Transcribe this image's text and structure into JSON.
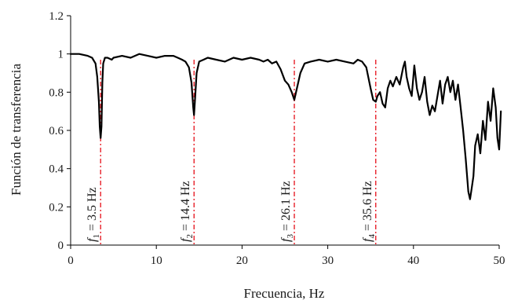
{
  "chart_data": {
    "type": "line",
    "title": "",
    "xlabel": "Frecuencia, Hz",
    "ylabel": "Función de transferencia",
    "xlim": [
      0,
      50
    ],
    "ylim": [
      0,
      1.2
    ],
    "x_ticks": [
      0,
      10,
      20,
      30,
      40,
      50
    ],
    "y_ticks": [
      0,
      0.2,
      0.4,
      0.6,
      0.8,
      1,
      1.2
    ],
    "x_tick_labels": [
      "0",
      "10",
      "20",
      "30",
      "40",
      "50"
    ],
    "y_tick_labels": [
      "0",
      "0.2",
      "0.4",
      "0.6",
      "0.8",
      "1",
      "1.2"
    ],
    "grid": false,
    "legend": "none",
    "line_color": "#000000",
    "marker_line_color": "#e8202a",
    "series": [
      {
        "x": [
          0,
          1,
          2,
          2.5,
          2.9,
          3.1,
          3.3,
          3.4,
          3.5,
          3.6,
          3.7,
          3.8,
          4.0,
          4.3,
          4.8,
          5,
          6,
          7,
          8,
          9,
          10,
          11,
          12,
          12.5,
          13,
          13.4,
          13.8,
          14.1,
          14.3,
          14.4,
          14.5,
          14.7,
          15.0,
          15.5,
          16,
          17,
          18,
          19,
          20,
          21,
          22,
          22.5,
          23,
          23.5,
          24,
          24.5,
          25,
          25.4,
          25.8,
          26.1,
          26.4,
          26.8,
          27.3,
          28,
          29,
          30,
          31,
          32,
          33,
          33.5,
          34,
          34.5,
          35,
          35.3,
          35.6,
          35.8,
          36.1,
          36.4,
          36.7,
          37.0,
          37.3,
          37.6,
          38.0,
          38.4,
          38.8,
          39.0,
          39.2,
          39.5,
          39.8,
          40.1,
          40.4,
          40.7,
          41.0,
          41.3,
          41.6,
          41.9,
          42.2,
          42.5,
          42.8,
          43.1,
          43.4,
          43.7,
          44.0,
          44.3,
          44.6,
          44.9,
          45.2,
          45.5,
          45.8,
          46.1,
          46.4,
          46.6,
          46.8,
          47.0,
          47.2,
          47.5,
          47.8,
          48.1,
          48.4,
          48.7,
          49.0,
          49.3,
          49.6,
          49.8,
          50.0,
          50.2
        ],
        "y": [
          1.0,
          1.0,
          0.99,
          0.98,
          0.95,
          0.88,
          0.75,
          0.62,
          0.56,
          0.62,
          0.85,
          0.95,
          0.98,
          0.98,
          0.97,
          0.98,
          0.99,
          0.98,
          1.0,
          0.99,
          0.98,
          0.99,
          0.99,
          0.98,
          0.97,
          0.96,
          0.93,
          0.85,
          0.72,
          0.68,
          0.75,
          0.9,
          0.96,
          0.97,
          0.98,
          0.97,
          0.96,
          0.98,
          0.97,
          0.98,
          0.97,
          0.96,
          0.97,
          0.95,
          0.96,
          0.92,
          0.86,
          0.84,
          0.8,
          0.76,
          0.82,
          0.9,
          0.95,
          0.96,
          0.97,
          0.96,
          0.97,
          0.96,
          0.95,
          0.97,
          0.96,
          0.93,
          0.82,
          0.76,
          0.75,
          0.78,
          0.8,
          0.74,
          0.72,
          0.82,
          0.86,
          0.83,
          0.88,
          0.84,
          0.93,
          0.96,
          0.88,
          0.82,
          0.78,
          0.94,
          0.82,
          0.76,
          0.8,
          0.88,
          0.75,
          0.68,
          0.73,
          0.7,
          0.78,
          0.86,
          0.74,
          0.84,
          0.88,
          0.8,
          0.86,
          0.76,
          0.84,
          0.72,
          0.6,
          0.45,
          0.28,
          0.24,
          0.3,
          0.36,
          0.52,
          0.58,
          0.48,
          0.65,
          0.55,
          0.75,
          0.65,
          0.82,
          0.72,
          0.56,
          0.5,
          0.7
        ]
      }
    ],
    "annotations": [
      {
        "x": 3.5,
        "label_main": "f",
        "label_sub": "1",
        "label_rest": " = 3.5 Hz"
      },
      {
        "x": 14.4,
        "label_main": "f",
        "label_sub": "2",
        "label_rest": " = 14.4 Hz"
      },
      {
        "x": 26.1,
        "label_main": "f",
        "label_sub": "3",
        "label_rest": " = 26.1 Hz"
      },
      {
        "x": 35.6,
        "label_main": "f",
        "label_sub": "4",
        "label_rest": " = 35.6 Hz"
      }
    ]
  }
}
